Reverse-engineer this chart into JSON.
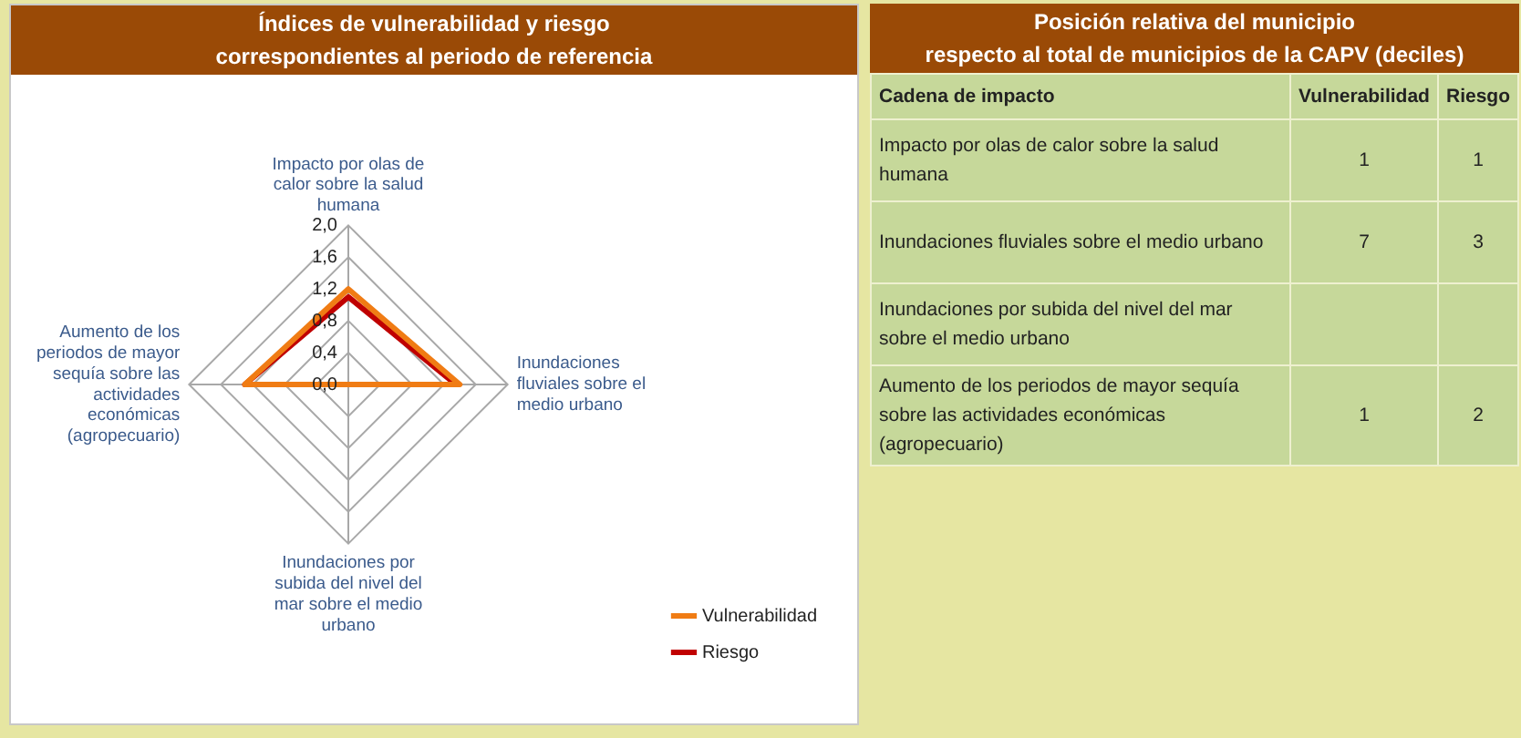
{
  "chart_data": [
    {
      "type": "radar",
      "title": "Índices de vulnerabilidad y riesgo\ncorrespondientes al periodo de referencia",
      "categories": [
        "Impacto por olas de calor sobre la salud humana",
        "Inundaciones fluviales sobre el medio urbano",
        "Inundaciones por subida del nivel del mar sobre el medio urbano",
        "Aumento de los periodos de mayor sequía sobre las actividades económicas (agropecuario)"
      ],
      "series": [
        {
          "name": "Vulnerabilidad",
          "color": "#f07c14",
          "values": [
            1.2,
            1.4,
            0,
            1.3
          ]
        },
        {
          "name": "Riesgo",
          "color": "#c00000",
          "values": [
            1.1,
            1.35,
            0,
            1.3
          ]
        }
      ],
      "ylim": [
        0,
        2
      ],
      "yticks": [
        {
          "value": 0,
          "label": "0,0"
        },
        {
          "value": 0.4,
          "label": "0,4"
        },
        {
          "value": 0.8,
          "label": "0,8"
        },
        {
          "value": 1.2,
          "label": "1,2"
        },
        {
          "value": 1.6,
          "label": "1,6"
        },
        {
          "value": 2,
          "label": "2,0"
        }
      ],
      "grid": true,
      "legend": "bottom right",
      "marker": "none",
      "line_style": "solid"
    },
    {
      "type": "other",
      "title": "Posición relativa del municipio\nrespecto al total de municipios de la CAPV (deciles)",
      "xlabel": "Cadena de impacto",
      "categories": [
        "Impacto por olas de calor sobre la salud humana",
        "Inundaciones fluviales sobre el medio urbano",
        "Inundaciones por subida del nivel del mar sobre el medio urbano",
        "Aumento de los periodos de mayor sequía sobre las actividades económicas (agropecuario)"
      ],
      "series": [
        {
          "name": "Vulnerabilidad",
          "values": [
            1,
            7,
            null,
            1
          ]
        },
        {
          "name": "Riesgo",
          "values": [
            1,
            3,
            null,
            2
          ]
        }
      ],
      "data_labels": true
    }
  ]
}
